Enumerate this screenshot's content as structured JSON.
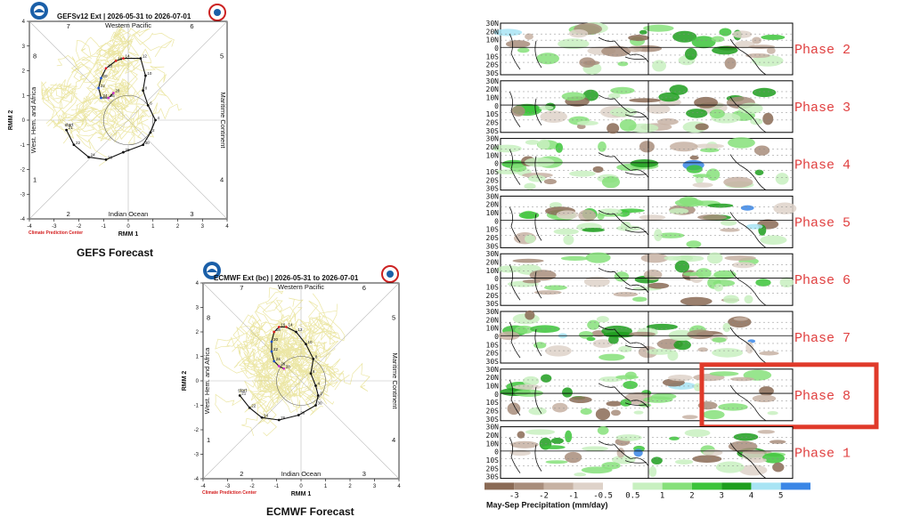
{
  "gefs": {
    "title": "GEFSv12 Ext | 2026-05-31 to 2026-07-01",
    "caption": "GEFS Forecast",
    "credit": "Climate Prediction Center",
    "xlabel": "RMM 1",
    "ylabel": "RMM 2",
    "regions": {
      "top": "Western Pacific",
      "bottom": "Indian Ocean",
      "left": "West. Hem. and Africa",
      "right": "Maritime Continent"
    },
    "phases": {
      "p1": "1",
      "p2": "2",
      "p3": "3",
      "p4": "4",
      "p5": "5",
      "p6": "6",
      "p7": "7",
      "p8": "8"
    },
    "xticks": [
      "-4",
      "-3",
      "-2",
      "-1",
      "0",
      "1",
      "2",
      "3",
      "4"
    ],
    "yticks": [
      "4",
      "3",
      "2",
      "1",
      "0",
      "-1",
      "-2",
      "-3",
      "-4"
    ],
    "start_label": "start",
    "track_labels": [
      "21",
      "22",
      "24",
      "26",
      "28",
      "30",
      "2",
      "4",
      "6",
      "8",
      "10",
      "12",
      "14",
      "16",
      "18",
      "20",
      "22",
      "24",
      "26",
      "28"
    ]
  },
  "ecmwf": {
    "title": "ECMWF Ext (bc) | 2026-05-31 to 2026-07-01",
    "caption": "ECMWF Forecast",
    "credit": "Climate Prediction Center",
    "xlabel": "RMM 1",
    "ylabel": "RMM 2",
    "regions": {
      "top": "Western Pacific",
      "bottom": "Indian Ocean",
      "left": "West. Hem. and Africa",
      "right": "Maritime Continent"
    },
    "phases": {
      "p1": "1",
      "p2": "2",
      "p3": "3",
      "p4": "4",
      "p5": "5",
      "p6": "6",
      "p7": "7",
      "p8": "8"
    },
    "xticks": [
      "-4",
      "-3",
      "-2",
      "-1",
      "0",
      "1",
      "2",
      "3",
      "4"
    ],
    "yticks": [
      "4",
      "3",
      "2",
      "1",
      "0",
      "-1",
      "-2",
      "-3",
      "-4"
    ],
    "start_label": "start",
    "track_labels": [
      "21",
      "22",
      "24",
      "26",
      "28",
      "30",
      "2",
      "4",
      "6",
      "8",
      "10",
      "12",
      "14",
      "16",
      "18",
      "20",
      "22",
      "24",
      "26",
      "28"
    ]
  },
  "composites": {
    "lat_labels": [
      "30N",
      "20N",
      "10N",
      "0",
      "10S",
      "20S",
      "30S"
    ],
    "phases": [
      "Phase 2",
      "Phase 3",
      "Phase 4",
      "Phase 5",
      "Phase 6",
      "Phase 7",
      "Phase 8",
      "Phase 1"
    ],
    "highlighted": "Phase 8",
    "colorbar_title": "May-Sep Precipitation (mm/day)",
    "colorbar_ticks": [
      "-3",
      "-2",
      "-1",
      "-0.5",
      "0.5",
      "1",
      "2",
      "3",
      "4",
      "5"
    ],
    "colors": {
      "brown3": "#8a6a55",
      "brown2": "#a88d7b",
      "brown1": "#c7b2a3",
      "brown05": "#ded2c9",
      "white": "#ffffff",
      "green05": "#c8f0c0",
      "green1": "#86e07a",
      "green2": "#3cc43a",
      "green3": "#1d9e1d",
      "cyan4": "#a8e4f4",
      "blue5": "#3a86e6",
      "highlight": "#e03a2a"
    }
  },
  "chart_data": [
    {
      "type": "scatter",
      "title": "GEFSv12 Ext | 2026-05-31 to 2026-07-01",
      "xlabel": "RMM 1",
      "ylabel": "RMM 2",
      "xlim": [
        -4,
        4
      ],
      "ylim": [
        -4,
        4
      ],
      "series": [
        {
          "x": [
            -2.5,
            -2.2,
            -1.6,
            -0.9,
            -0.2,
            0.6,
            0.9,
            1.1,
            0.8,
            0.6,
            0.7,
            0.5,
            -0.2,
            -0.5,
            -0.9,
            -1.1,
            -1.2,
            -1.1,
            -0.8,
            -0.6
          ],
          "y": [
            -0.4,
            -1.0,
            -1.5,
            -1.6,
            -1.3,
            -1.0,
            -0.5,
            0.0,
            0.6,
            1.2,
            1.8,
            2.5,
            2.5,
            2.4,
            2.1,
            1.7,
            1.3,
            0.9,
            0.9,
            1.1
          ]
        }
      ]
    },
    {
      "type": "scatter",
      "title": "ECMWF Ext (bc) | 2026-05-31 to 2026-07-01",
      "xlabel": "RMM 1",
      "ylabel": "RMM 2",
      "xlim": [
        -4,
        4
      ],
      "ylim": [
        -4,
        4
      ],
      "series": [
        {
          "x": [
            -2.5,
            -2.1,
            -1.6,
            -0.9,
            -0.1,
            0.6,
            0.7,
            0.6,
            0.4,
            0.5,
            0.2,
            -0.2,
            -0.6,
            -0.9,
            -1.1,
            -1.2,
            -1.2,
            -1.1,
            -0.9,
            -0.7
          ],
          "y": [
            -0.6,
            -1.1,
            -1.5,
            -1.6,
            -1.4,
            -1.0,
            -0.6,
            -0.2,
            0.3,
            0.9,
            1.5,
            2.0,
            2.2,
            2.2,
            2.0,
            1.6,
            1.2,
            0.8,
            0.6,
            0.5
          ]
        }
      ]
    }
  ]
}
